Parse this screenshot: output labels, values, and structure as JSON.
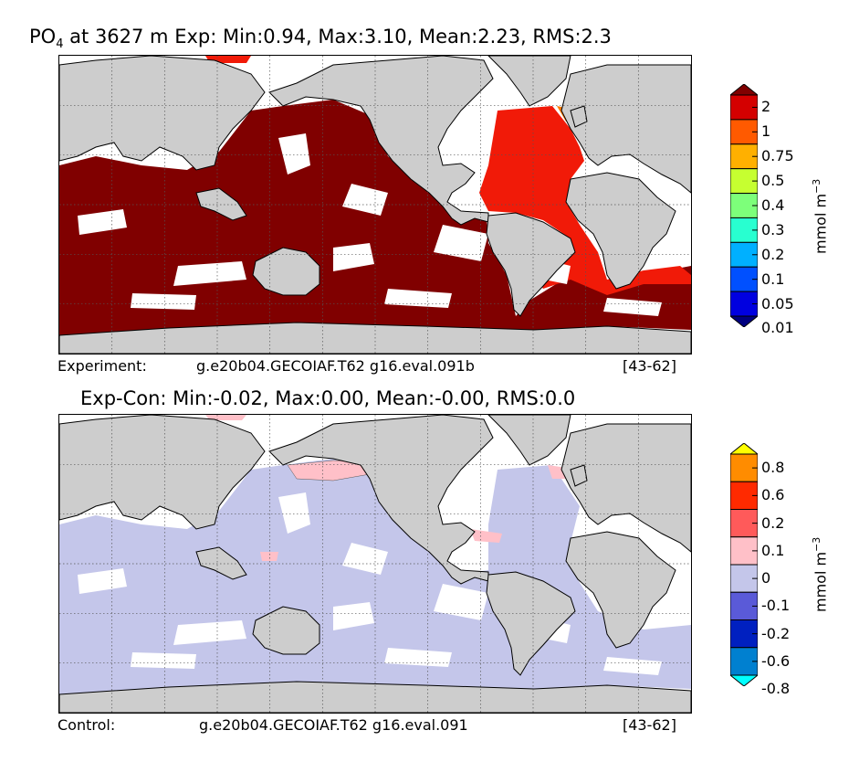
{
  "top_panel": {
    "title_prefix": "PO",
    "title_subscript": "4",
    "title_rest": " at 3627 m Exp: Min:0.94, Max:3.10, Mean:2.23, RMS:2.3",
    "footer_left": "Experiment:",
    "footer_case": "g.e20b04.GECOIAF.T62 g16.eval.091b",
    "footer_right": "[43-62]"
  },
  "bottom_panel": {
    "title": "Exp-Con: Min:-0.02, Max:0.00, Mean:-0.00, RMS:0.0",
    "footer_left": "Control:",
    "footer_case": "g.e20b04.GECOIAF.T62 g16.eval.091",
    "footer_right": "[43-62]"
  },
  "colorbar_top": {
    "unit_label": "mmol m",
    "unit_exponent": "−3",
    "ticks": [
      "2",
      "1",
      "0.75",
      "0.5",
      "0.4",
      "0.3",
      "0.2",
      "0.1",
      "0.05",
      "0.01"
    ],
    "colors": [
      "#800000",
      "#d40000",
      "#ff5a00",
      "#ffb000",
      "#c6ff30",
      "#7dff7a",
      "#28ffd0",
      "#00b0ff",
      "#0050ff",
      "#0000e0",
      "#000080"
    ]
  },
  "colorbar_bottom": {
    "unit_label": "mmol m",
    "unit_exponent": "−3",
    "ticks": [
      "0.8",
      "0.6",
      "0.2",
      "0.1",
      "0",
      "-0.1",
      "-0.2",
      "-0.6",
      "-0.8"
    ],
    "colors": [
      "#ffff00",
      "#ff8c00",
      "#ff2a00",
      "#ff5a5a",
      "#ffc0c8",
      "#c4c6ea",
      "#5a5ad8",
      "#0020c0",
      "#0080d0",
      "#00ffff"
    ]
  },
  "colors": {
    "land": "#cdcdcd",
    "missing": "#ffffff",
    "exp_deep_pacific_indian": "#800000",
    "exp_atlantic": "#f11a08",
    "exp_north_atlantic_spot": "#ff7a00",
    "diff_ocean": "#c4c6ea",
    "diff_positive": "#ffc0c8"
  },
  "chart_data": [
    {
      "type": "heatmap",
      "title": "PO4 at 3627 m Exp: Min:0.94, Max:3.10, Mean:2.23, RMS:2.3",
      "field": "PO4",
      "depth_m": 3627,
      "stats": {
        "min": 0.94,
        "max": 3.1,
        "mean": 2.23,
        "rms": 2.3
      },
      "units": "mmol m^-3",
      "colorbar_levels": [
        0.01,
        0.05,
        0.1,
        0.2,
        0.3,
        0.4,
        0.5,
        0.75,
        1,
        2
      ],
      "projection": "global cylindrical",
      "grid": true,
      "case": "g.e20b04.GECOIAF.T62 g16.eval.091b",
      "years": "[43-62]"
    },
    {
      "type": "heatmap",
      "title": "Exp-Con: Min:-0.02, Max:0.00, Mean:-0.00, RMS:0.0",
      "field": "PO4 difference",
      "stats": {
        "min": -0.02,
        "max": 0.0,
        "mean": -0.0,
        "rms": 0.0
      },
      "units": "mmol m^-3",
      "colorbar_levels": [
        -0.8,
        -0.6,
        -0.2,
        -0.1,
        0,
        0.1,
        0.2,
        0.6,
        0.8
      ],
      "projection": "global cylindrical",
      "grid": true,
      "case": "g.e20b04.GECOIAF.T62 g16.eval.091",
      "years": "[43-62]"
    }
  ]
}
